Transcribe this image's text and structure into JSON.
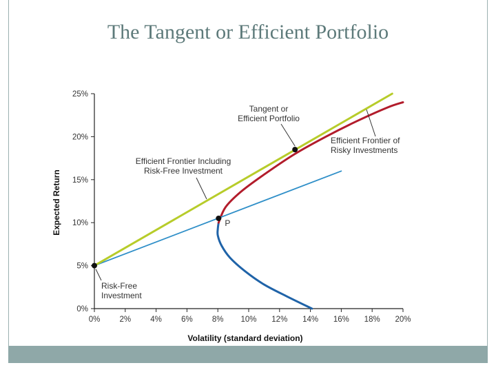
{
  "slide": {
    "title": "The Tangent or Efficient Portfolio"
  },
  "chart_data": {
    "type": "line",
    "title": "The Tangent or Efficient Portfolio",
    "xlabel": "Volatility (standard deviation)",
    "ylabel": "Expected Return",
    "xlim": [
      0,
      20
    ],
    "ylim": [
      0,
      25
    ],
    "x_ticks": [
      0,
      2,
      4,
      6,
      8,
      10,
      12,
      14,
      16,
      18,
      20
    ],
    "x_tick_labels": [
      "0%",
      "2%",
      "4%",
      "6%",
      "8%",
      "10%",
      "12%",
      "14%",
      "16%",
      "18%",
      "20%"
    ],
    "y_ticks": [
      0,
      5,
      10,
      15,
      20,
      25
    ],
    "y_tick_labels": [
      "0%",
      "5%",
      "10%",
      "15%",
      "20%",
      "25%"
    ],
    "grid": false,
    "colors": {
      "frontier_lower": "#1f63a8",
      "frontier_upper": "#b21c2b",
      "line_through_p": "#2f8fc8",
      "tangent_line": "#b7cc2a",
      "points": "#111111"
    },
    "series": [
      {
        "name": "Efficient Frontier of Risky Investments (inefficient part)",
        "color_key": "frontier_lower",
        "points": [
          [
            14.1,
            0
          ],
          [
            12.5,
            1.4
          ],
          [
            11,
            2.8
          ],
          [
            9.8,
            4.3
          ],
          [
            8.8,
            5.9
          ],
          [
            8.25,
            7.3
          ],
          [
            8.0,
            8.5
          ],
          [
            8.0,
            9.3
          ],
          [
            8.05,
            10
          ]
        ]
      },
      {
        "name": "Efficient Frontier of Risky Investments",
        "color_key": "frontier_upper",
        "points": [
          [
            8.05,
            10
          ],
          [
            8.5,
            11.8
          ],
          [
            9.5,
            13.6
          ],
          [
            11,
            15.6
          ],
          [
            13,
            18
          ],
          [
            15,
            20
          ],
          [
            17,
            21.8
          ],
          [
            19,
            23.4
          ],
          [
            20,
            24
          ]
        ]
      },
      {
        "name": "Risk-free to portfolio P",
        "color_key": "line_through_p",
        "points": [
          [
            0,
            5
          ],
          [
            16,
            16
          ]
        ]
      },
      {
        "name": "Efficient Frontier Including Risk-Free Investment",
        "color_key": "tangent_line",
        "points": [
          [
            0,
            5
          ],
          [
            19.3,
            25
          ]
        ]
      }
    ],
    "points": [
      {
        "name": "Risk-Free Investment",
        "x": 0,
        "y": 5
      },
      {
        "name": "P",
        "x": 8.05,
        "y": 10.5
      },
      {
        "name": "Tangent or Efficient Portfolio",
        "x": 13,
        "y": 18.5
      }
    ],
    "annotations": {
      "tangent_portfolio": [
        "Tangent or",
        "Efficient Portfolio"
      ],
      "efficient_frontier_risky": [
        "Efficient Frontier of",
        "Risky Investments"
      ],
      "efficient_frontier_riskfree": [
        "Efficient Frontier Including",
        "Risk-Free Investment"
      ],
      "risk_free": [
        "Risk-Free",
        "Investment"
      ],
      "point_p": "P"
    }
  }
}
